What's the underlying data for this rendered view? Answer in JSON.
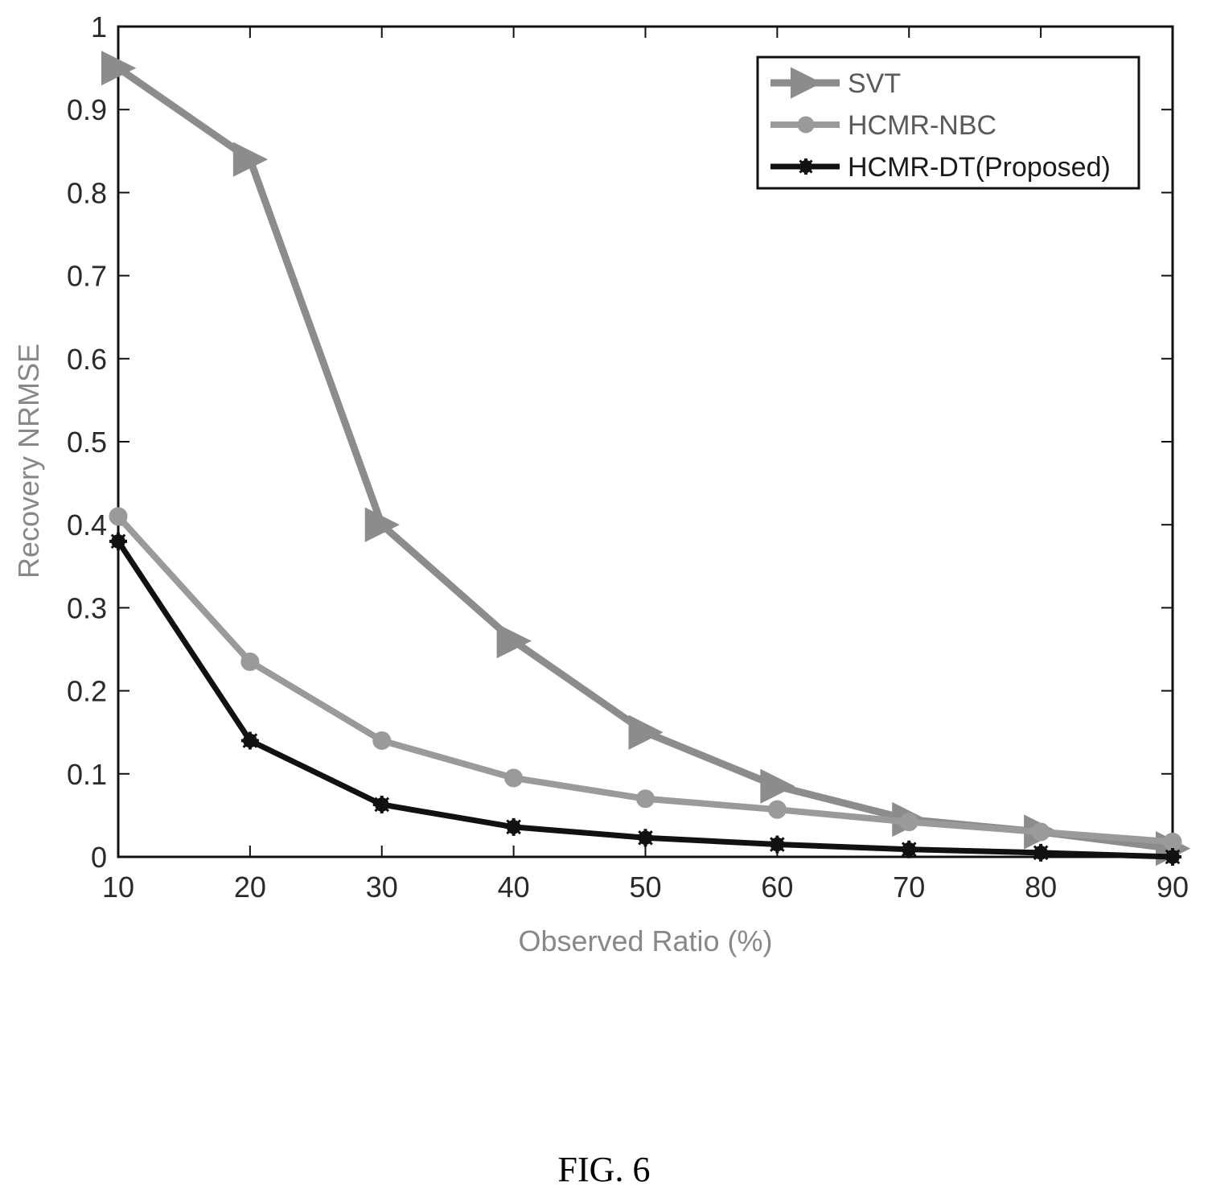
{
  "caption": "FIG. 6",
  "chart_data": {
    "type": "line",
    "title": "",
    "xlabel": "Observed Ratio (%)",
    "ylabel": "Recovery NRMSE",
    "x": [
      10,
      20,
      30,
      40,
      50,
      60,
      70,
      80,
      90
    ],
    "xlim": [
      10,
      90
    ],
    "ylim": [
      0,
      1
    ],
    "xticks": [
      10,
      20,
      30,
      40,
      50,
      60,
      70,
      80,
      90
    ],
    "yticks": [
      0,
      0.1,
      0.2,
      0.3,
      0.4,
      0.5,
      0.6,
      0.7,
      0.8,
      0.9,
      1
    ],
    "ytick_labels": [
      "0",
      "0.1",
      "0.2",
      "0.3",
      "0.4",
      "0.5",
      "0.6",
      "0.7",
      "0.8",
      "0.9",
      "1"
    ],
    "grid": false,
    "legend_position": "top-right",
    "series": [
      {
        "name": "SVT",
        "marker": "triangle-right",
        "color": "#8c8c8c",
        "values": [
          0.95,
          0.84,
          0.4,
          0.26,
          0.15,
          0.085,
          0.045,
          0.03,
          0.01
        ]
      },
      {
        "name": "HCMR-NBC",
        "marker": "circle",
        "color": "#9a9a9a",
        "values": [
          0.41,
          0.235,
          0.14,
          0.095,
          0.07,
          0.057,
          0.042,
          0.03,
          0.018
        ]
      },
      {
        "name": "HCMR-DT(Proposed)",
        "marker": "star",
        "color": "#111111",
        "values": [
          0.38,
          0.14,
          0.063,
          0.036,
          0.023,
          0.015,
          0.009,
          0.005,
          0.0
        ]
      }
    ]
  }
}
